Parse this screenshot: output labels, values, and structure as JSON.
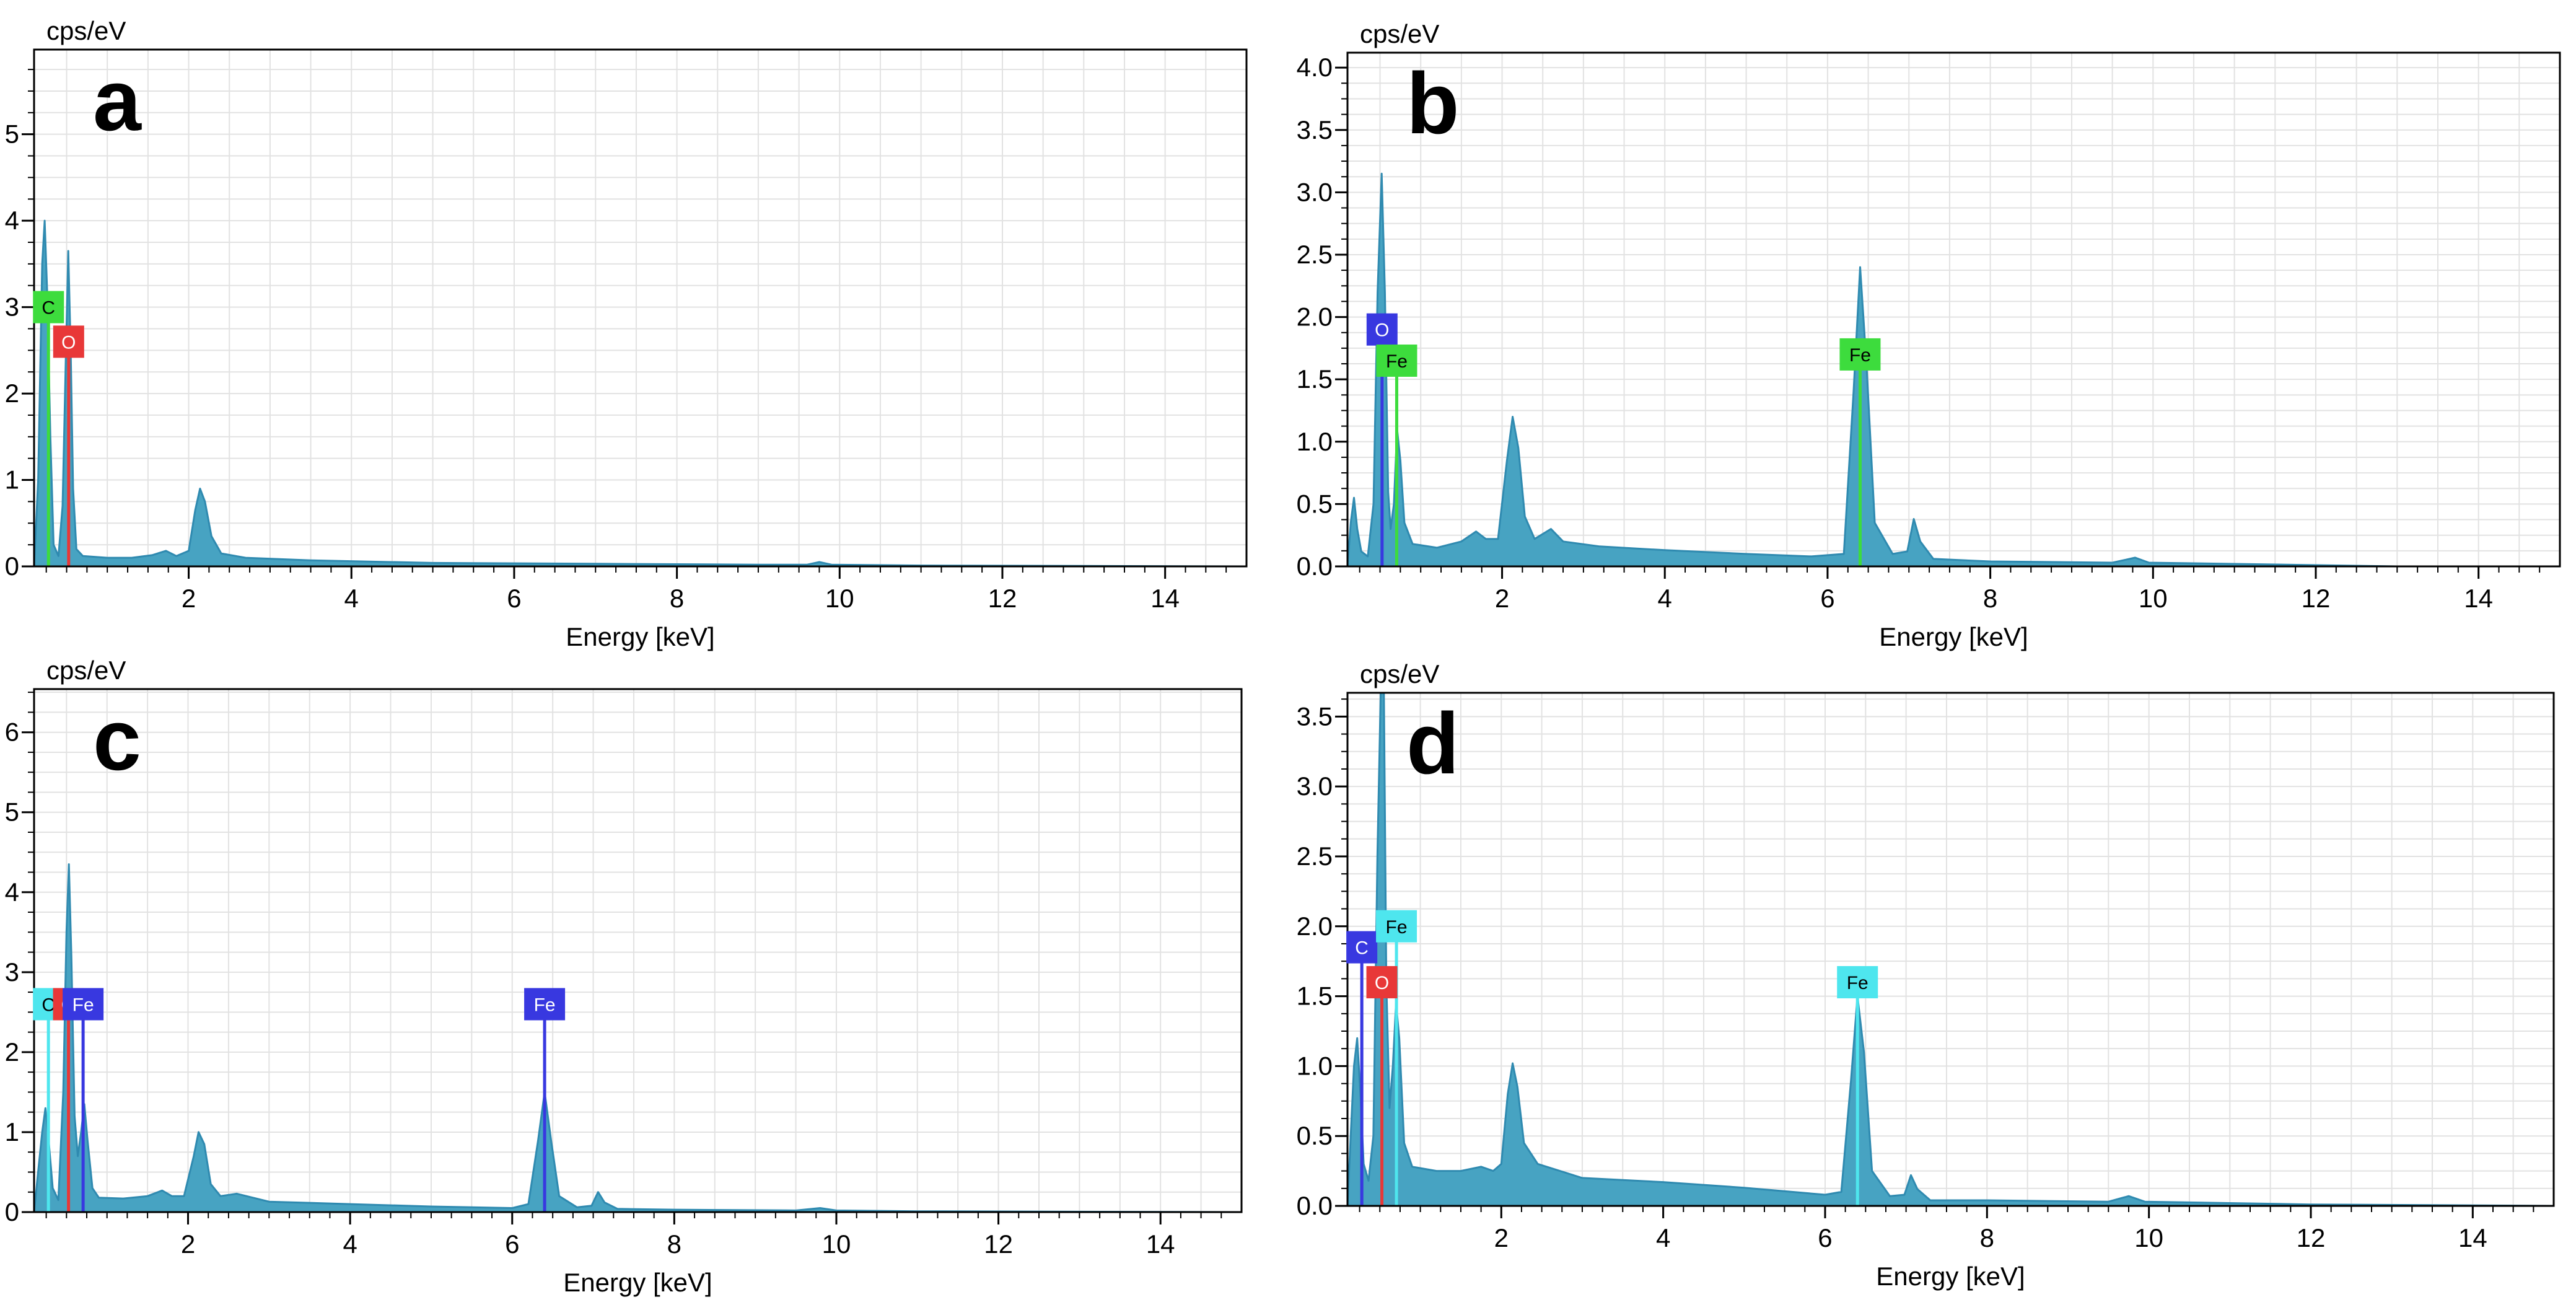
{
  "colors": {
    "spectrum_fill": "#47a3c2",
    "spectrum_stroke": "#2f8ab0",
    "grid": "#e2e2e2",
    "frame": "#000000",
    "green": "#3ddc3d",
    "red": "#e83838",
    "blue": "#3838e0",
    "cyan": "#4ee6ee"
  },
  "chart_data": [
    {
      "panel": "a",
      "type": "area",
      "xlabel": "Energy [keV]",
      "ylabel": "cps/eV",
      "xlim": [
        0.1,
        15.0
      ],
      "ylim": [
        0,
        5.98
      ],
      "xticks": [
        {
          "value": 2,
          "label": "2"
        },
        {
          "value": 4,
          "label": "4"
        },
        {
          "value": 6,
          "label": "6"
        },
        {
          "value": 8,
          "label": "8"
        },
        {
          "value": 10,
          "label": "10"
        },
        {
          "value": 12,
          "label": "12"
        },
        {
          "value": 14,
          "label": "14"
        }
      ],
      "yticks": [
        {
          "value": 0,
          "label": "0"
        },
        {
          "value": 1,
          "label": "1"
        },
        {
          "value": 2,
          "label": "2"
        },
        {
          "value": 3,
          "label": "3"
        },
        {
          "value": 4,
          "label": "4"
        },
        {
          "value": 5,
          "label": "5"
        }
      ],
      "grid": true,
      "spectrum": [
        [
          0.1,
          0.0
        ],
        [
          0.15,
          1.0
        ],
        [
          0.2,
          3.5
        ],
        [
          0.23,
          4.0
        ],
        [
          0.26,
          3.2
        ],
        [
          0.3,
          1.5
        ],
        [
          0.34,
          0.25
        ],
        [
          0.4,
          0.12
        ],
        [
          0.45,
          0.7
        ],
        [
          0.49,
          2.4
        ],
        [
          0.52,
          3.65
        ],
        [
          0.55,
          2.5
        ],
        [
          0.58,
          0.9
        ],
        [
          0.62,
          0.2
        ],
        [
          0.7,
          0.12
        ],
        [
          1.0,
          0.1
        ],
        [
          1.3,
          0.1
        ],
        [
          1.55,
          0.13
        ],
        [
          1.72,
          0.18
        ],
        [
          1.85,
          0.12
        ],
        [
          2.0,
          0.18
        ],
        [
          2.08,
          0.65
        ],
        [
          2.14,
          0.9
        ],
        [
          2.2,
          0.75
        ],
        [
          2.28,
          0.35
        ],
        [
          2.4,
          0.15
        ],
        [
          2.7,
          0.1
        ],
        [
          3.5,
          0.07
        ],
        [
          5.0,
          0.04
        ],
        [
          7.0,
          0.03
        ],
        [
          9.0,
          0.02
        ],
        [
          9.6,
          0.02
        ],
        [
          9.75,
          0.05
        ],
        [
          9.9,
          0.02
        ],
        [
          11.0,
          0.01
        ],
        [
          13.0,
          0.005
        ],
        [
          15.0,
          0.0
        ]
      ],
      "markers": [
        {
          "element": "C",
          "energy": 0.277,
          "line_height": 3.0,
          "color": "green"
        },
        {
          "element": "O",
          "energy": 0.525,
          "line_height": 2.6,
          "color": "red"
        }
      ],
      "annotation": "a"
    },
    {
      "panel": "b",
      "type": "area",
      "xlabel": "Energy [keV]",
      "ylabel": "cps/eV",
      "xlim": [
        0.1,
        15.0
      ],
      "ylim": [
        0,
        4.12
      ],
      "xticks": [
        {
          "value": 2,
          "label": "2"
        },
        {
          "value": 4,
          "label": "4"
        },
        {
          "value": 6,
          "label": "6"
        },
        {
          "value": 8,
          "label": "8"
        },
        {
          "value": 10,
          "label": "10"
        },
        {
          "value": 12,
          "label": "12"
        },
        {
          "value": 14,
          "label": "14"
        }
      ],
      "yticks": [
        {
          "value": 0,
          "label": "0.0"
        },
        {
          "value": 0.5,
          "label": "0.5"
        },
        {
          "value": 1,
          "label": "1.0"
        },
        {
          "value": 1.5,
          "label": "1.5"
        },
        {
          "value": 2,
          "label": "2.0"
        },
        {
          "value": 2.5,
          "label": "2.5"
        },
        {
          "value": 3,
          "label": "3.0"
        },
        {
          "value": 3.5,
          "label": "3.5"
        },
        {
          "value": 4,
          "label": "4.0"
        }
      ],
      "grid": true,
      "spectrum": [
        [
          0.1,
          0.0
        ],
        [
          0.14,
          0.35
        ],
        [
          0.18,
          0.55
        ],
        [
          0.22,
          0.3
        ],
        [
          0.27,
          0.12
        ],
        [
          0.35,
          0.08
        ],
        [
          0.42,
          0.5
        ],
        [
          0.47,
          2.2
        ],
        [
          0.52,
          3.15
        ],
        [
          0.56,
          2.2
        ],
        [
          0.6,
          0.6
        ],
        [
          0.63,
          0.3
        ],
        [
          0.67,
          0.5
        ],
        [
          0.71,
          1.1
        ],
        [
          0.75,
          0.85
        ],
        [
          0.8,
          0.35
        ],
        [
          0.9,
          0.18
        ],
        [
          1.2,
          0.15
        ],
        [
          1.5,
          0.2
        ],
        [
          1.68,
          0.28
        ],
        [
          1.8,
          0.22
        ],
        [
          1.95,
          0.22
        ],
        [
          2.06,
          0.85
        ],
        [
          2.13,
          1.2
        ],
        [
          2.2,
          0.95
        ],
        [
          2.28,
          0.4
        ],
        [
          2.4,
          0.22
        ],
        [
          2.6,
          0.3
        ],
        [
          2.75,
          0.2
        ],
        [
          3.2,
          0.16
        ],
        [
          4.0,
          0.13
        ],
        [
          5.0,
          0.1
        ],
        [
          5.8,
          0.08
        ],
        [
          6.2,
          0.1
        ],
        [
          6.32,
          1.4
        ],
        [
          6.4,
          2.4
        ],
        [
          6.48,
          1.6
        ],
        [
          6.58,
          0.35
        ],
        [
          6.8,
          0.1
        ],
        [
          6.98,
          0.12
        ],
        [
          7.06,
          0.38
        ],
        [
          7.14,
          0.2
        ],
        [
          7.3,
          0.06
        ],
        [
          8.0,
          0.04
        ],
        [
          9.5,
          0.03
        ],
        [
          9.78,
          0.07
        ],
        [
          9.95,
          0.03
        ],
        [
          11.0,
          0.02
        ],
        [
          12.0,
          0.01
        ],
        [
          13.0,
          0.0
        ],
        [
          15.0,
          0.0
        ]
      ],
      "markers": [
        {
          "element": "O",
          "energy": 0.525,
          "line_height": 1.9,
          "color": "blue"
        },
        {
          "element": "Fe",
          "energy": 0.705,
          "line_height": 1.65,
          "color": "green"
        },
        {
          "element": "Fe",
          "energy": 6.4,
          "line_height": 1.7,
          "color": "green"
        }
      ],
      "annotation": "b"
    },
    {
      "panel": "c",
      "type": "area",
      "xlabel": "Energy [keV]",
      "ylabel": "cps/eV",
      "xlim": [
        0.1,
        15.0
      ],
      "ylim": [
        0,
        6.54
      ],
      "xticks": [
        {
          "value": 2,
          "label": "2"
        },
        {
          "value": 4,
          "label": "4"
        },
        {
          "value": 6,
          "label": "6"
        },
        {
          "value": 8,
          "label": "8"
        },
        {
          "value": 10,
          "label": "10"
        },
        {
          "value": 12,
          "label": "12"
        },
        {
          "value": 14,
          "label": "14"
        }
      ],
      "yticks": [
        {
          "value": 0,
          "label": "0"
        },
        {
          "value": 1,
          "label": "1"
        },
        {
          "value": 2,
          "label": "2"
        },
        {
          "value": 3,
          "label": "3"
        },
        {
          "value": 4,
          "label": "4"
        },
        {
          "value": 5,
          "label": "5"
        },
        {
          "value": 6,
          "label": "6"
        }
      ],
      "grid": true,
      "spectrum": [
        [
          0.1,
          0.0
        ],
        [
          0.16,
          0.6
        ],
        [
          0.2,
          1.0
        ],
        [
          0.24,
          1.3
        ],
        [
          0.28,
          0.9
        ],
        [
          0.33,
          0.3
        ],
        [
          0.4,
          0.15
        ],
        [
          0.46,
          1.5
        ],
        [
          0.5,
          3.5
        ],
        [
          0.53,
          4.35
        ],
        [
          0.56,
          3.2
        ],
        [
          0.6,
          1.2
        ],
        [
          0.64,
          0.7
        ],
        [
          0.68,
          1.0
        ],
        [
          0.72,
          1.35
        ],
        [
          0.76,
          0.9
        ],
        [
          0.82,
          0.3
        ],
        [
          0.9,
          0.18
        ],
        [
          1.2,
          0.17
        ],
        [
          1.5,
          0.2
        ],
        [
          1.68,
          0.27
        ],
        [
          1.8,
          0.2
        ],
        [
          1.95,
          0.2
        ],
        [
          2.07,
          0.7
        ],
        [
          2.13,
          1.0
        ],
        [
          2.2,
          0.85
        ],
        [
          2.28,
          0.35
        ],
        [
          2.4,
          0.2
        ],
        [
          2.6,
          0.23
        ],
        [
          3.0,
          0.13
        ],
        [
          4.0,
          0.1
        ],
        [
          5.0,
          0.07
        ],
        [
          6.0,
          0.05
        ],
        [
          6.2,
          0.1
        ],
        [
          6.32,
          0.9
        ],
        [
          6.4,
          1.5
        ],
        [
          6.48,
          0.9
        ],
        [
          6.58,
          0.2
        ],
        [
          6.8,
          0.06
        ],
        [
          6.98,
          0.08
        ],
        [
          7.06,
          0.25
        ],
        [
          7.14,
          0.12
        ],
        [
          7.3,
          0.04
        ],
        [
          8.0,
          0.03
        ],
        [
          9.5,
          0.02
        ],
        [
          9.8,
          0.05
        ],
        [
          10.0,
          0.02
        ],
        [
          11.0,
          0.01
        ],
        [
          15.0,
          0.0
        ]
      ],
      "markers": [
        {
          "element": "C",
          "energy": 0.277,
          "line_height": 2.6,
          "color": "cyan"
        },
        {
          "element": "O",
          "energy": 0.525,
          "line_height": 2.6,
          "color": "red"
        },
        {
          "element": "Fe",
          "energy": 0.705,
          "line_height": 2.6,
          "color": "blue"
        },
        {
          "element": "Fe",
          "energy": 6.4,
          "line_height": 2.6,
          "color": "blue"
        }
      ],
      "annotation": "c"
    },
    {
      "panel": "d",
      "type": "area",
      "xlabel": "Energy [keV]",
      "ylabel": "cps/eV",
      "xlim": [
        0.1,
        15.0
      ],
      "ylim": [
        0,
        3.67
      ],
      "xticks": [
        {
          "value": 2,
          "label": "2"
        },
        {
          "value": 4,
          "label": "4"
        },
        {
          "value": 6,
          "label": "6"
        },
        {
          "value": 8,
          "label": "8"
        },
        {
          "value": 10,
          "label": "10"
        },
        {
          "value": 12,
          "label": "12"
        },
        {
          "value": 14,
          "label": "14"
        }
      ],
      "yticks": [
        {
          "value": 0,
          "label": "0.0"
        },
        {
          "value": 0.5,
          "label": "0.5"
        },
        {
          "value": 1,
          "label": "1.0"
        },
        {
          "value": 1.5,
          "label": "1.5"
        },
        {
          "value": 2,
          "label": "2.0"
        },
        {
          "value": 2.5,
          "label": "2.5"
        },
        {
          "value": 3,
          "label": "3.0"
        },
        {
          "value": 3.5,
          "label": "3.5"
        }
      ],
      "grid": true,
      "spectrum": [
        [
          0.1,
          0.0
        ],
        [
          0.14,
          0.5
        ],
        [
          0.18,
          1.0
        ],
        [
          0.22,
          1.2
        ],
        [
          0.26,
          0.8
        ],
        [
          0.3,
          0.3
        ],
        [
          0.36,
          0.18
        ],
        [
          0.42,
          0.5
        ],
        [
          0.47,
          2.5
        ],
        [
          0.51,
          3.67
        ],
        [
          0.55,
          3.67
        ],
        [
          0.58,
          1.6
        ],
        [
          0.62,
          0.7
        ],
        [
          0.66,
          1.0
        ],
        [
          0.7,
          1.45
        ],
        [
          0.74,
          1.2
        ],
        [
          0.8,
          0.45
        ],
        [
          0.9,
          0.28
        ],
        [
          1.2,
          0.25
        ],
        [
          1.5,
          0.25
        ],
        [
          1.75,
          0.28
        ],
        [
          1.9,
          0.25
        ],
        [
          2.0,
          0.3
        ],
        [
          2.08,
          0.8
        ],
        [
          2.14,
          1.02
        ],
        [
          2.2,
          0.85
        ],
        [
          2.28,
          0.45
        ],
        [
          2.45,
          0.3
        ],
        [
          3.0,
          0.2
        ],
        [
          4.0,
          0.17
        ],
        [
          5.0,
          0.13
        ],
        [
          6.0,
          0.08
        ],
        [
          6.2,
          0.1
        ],
        [
          6.32,
          0.9
        ],
        [
          6.4,
          1.5
        ],
        [
          6.48,
          1.1
        ],
        [
          6.58,
          0.25
        ],
        [
          6.8,
          0.07
        ],
        [
          6.98,
          0.08
        ],
        [
          7.06,
          0.22
        ],
        [
          7.14,
          0.12
        ],
        [
          7.3,
          0.04
        ],
        [
          8.0,
          0.04
        ],
        [
          9.5,
          0.03
        ],
        [
          9.75,
          0.07
        ],
        [
          9.95,
          0.03
        ],
        [
          11.0,
          0.02
        ],
        [
          12.0,
          0.01
        ],
        [
          15.0,
          0.0
        ]
      ],
      "markers": [
        {
          "element": "C",
          "energy": 0.277,
          "line_height": 1.85,
          "color": "blue"
        },
        {
          "element": "O",
          "energy": 0.525,
          "line_height": 1.6,
          "color": "red"
        },
        {
          "element": "Fe",
          "energy": 0.705,
          "line_height": 2.0,
          "color": "cyan"
        },
        {
          "element": "Fe",
          "energy": 6.4,
          "line_height": 1.6,
          "color": "cyan"
        }
      ],
      "annotation": "d"
    }
  ]
}
